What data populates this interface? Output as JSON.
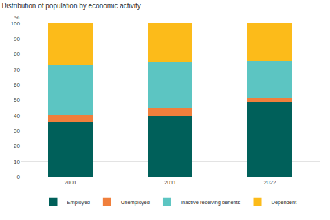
{
  "chart_data": {
    "type": "bar",
    "title": "Distribution of population by economic activity",
    "y_label": "%",
    "categories": [
      "2001",
      "2011",
      "2022"
    ],
    "series": [
      {
        "name": "Employed",
        "color": "#00605a",
        "values": [
          36,
          39.5,
          49
        ]
      },
      {
        "name": "Unemployed",
        "color": "#f07f3c",
        "values": [
          4,
          5.5,
          2.5
        ]
      },
      {
        "name": "Inactive receiving benefits",
        "color": "#5cc5c2",
        "values": [
          33,
          30,
          24
        ]
      },
      {
        "name": "Dependent",
        "color": "#fcbb1a",
        "values": [
          27,
          25,
          24.5
        ]
      }
    ],
    "stacked": true,
    "ylim": [
      0,
      100
    ],
    "yticks": [
      0,
      10,
      20,
      30,
      40,
      50,
      60,
      70,
      80,
      90,
      100
    ],
    "grid": true,
    "legend": "bottom"
  }
}
